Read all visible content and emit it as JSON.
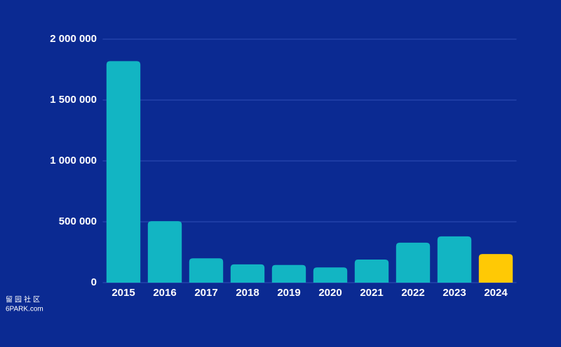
{
  "chart_data": {
    "type": "bar",
    "categories": [
      "2015",
      "2016",
      "2017",
      "2018",
      "2019",
      "2020",
      "2021",
      "2022",
      "2023",
      "2024"
    ],
    "values": [
      1820000,
      505000,
      200000,
      150000,
      145000,
      125000,
      190000,
      328000,
      380000,
      235000
    ],
    "colors": [
      "#12b5c3",
      "#12b5c3",
      "#12b5c3",
      "#12b5c3",
      "#12b5c3",
      "#12b5c3",
      "#12b5c3",
      "#12b5c3",
      "#12b5c3",
      "#ffc905"
    ],
    "ylim": [
      0,
      2000000
    ],
    "yticks": [
      0,
      {
        "value": 500000,
        "label": "500 000"
      },
      {
        "value": 1000000,
        "label": "1 000 000"
      },
      {
        "value": 1500000,
        "label": "1 500 000"
      },
      {
        "value": 2000000,
        "label": "2 000 000"
      }
    ],
    "grid": true
  },
  "watermark": {
    "name": "留园社区",
    "site": "6PARK.com"
  }
}
